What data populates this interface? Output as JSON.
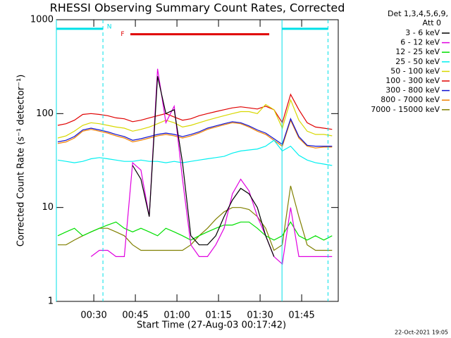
{
  "chart_data": {
    "type": "line",
    "title": "RHESSI Observing Summary Count Rates, Corrected",
    "x_label": "Start Time (27-Aug-03 00:17:42)",
    "y_label": "Corrected Count Rate (s⁻¹ detector⁻¹)",
    "legend_header": [
      "Det 1,3,4,5,6,9,",
      "Att 0"
    ],
    "footer": "22-Oct-2021 19:05",
    "log_y": true,
    "xlim": [
      16.5,
      118.2
    ],
    "xticks": [
      {
        "value": 30,
        "label": "00:30"
      },
      {
        "value": 45,
        "label": "00:45"
      },
      {
        "value": 60,
        "label": "01:00"
      },
      {
        "value": 75,
        "label": "01:15"
      },
      {
        "value": 90,
        "label": "01:30"
      },
      {
        "value": 105,
        "label": "01:45"
      }
    ],
    "ylim": [
      1,
      1000
    ],
    "yticks": [
      1,
      10,
      100,
      1000
    ],
    "annotations": {
      "night": {
        "label": "N",
        "color": "#00e0e8",
        "level": 800,
        "intervals": [
          [
            16.5,
            33.3
          ],
          [
            97.9,
            114.5
          ]
        ]
      },
      "flare": {
        "label": "F",
        "color": "#e00000",
        "level": 700,
        "x": [
          43.2,
          93.3
        ]
      }
    },
    "x": [
      17,
      20,
      23,
      26,
      29,
      32,
      35,
      38,
      41,
      44,
      47,
      50,
      53,
      56,
      59,
      62,
      65,
      68,
      71,
      74,
      77,
      80,
      83,
      86,
      89,
      92,
      95,
      98,
      101,
      104,
      107,
      110,
      113,
      116
    ],
    "series": [
      {
        "name": "3 - 6 keV",
        "color": "#000000",
        "values": [
          null,
          null,
          null,
          null,
          null,
          null,
          null,
          null,
          null,
          28,
          20,
          8,
          250,
          100,
          110,
          30,
          5,
          4,
          4,
          5,
          8,
          12,
          16,
          14,
          10,
          5,
          3,
          null,
          10,
          null,
          null,
          null,
          null,
          null
        ]
      },
      {
        "name": "6 - 12 keV",
        "color": "#e000e0",
        "values": [
          null,
          null,
          null,
          null,
          3,
          3.5,
          3.5,
          3,
          3,
          30,
          25,
          8,
          300,
          80,
          120,
          20,
          4,
          3,
          3,
          4,
          6,
          14,
          20,
          15,
          8,
          5,
          3,
          2.5,
          10,
          3,
          3,
          3,
          3,
          3
        ]
      },
      {
        "name": "12 - 25 keV",
        "color": "#00e000",
        "values": [
          5,
          5.5,
          6,
          5,
          5.5,
          6,
          6.5,
          7,
          6,
          5.5,
          6,
          5.5,
          5,
          6,
          5.5,
          5,
          4.5,
          5,
          5.5,
          6,
          6.5,
          6.5,
          7,
          7,
          6,
          5,
          4.5,
          5,
          7,
          5,
          4.5,
          5,
          4.5,
          5
        ]
      },
      {
        "name": "25 - 50 keV",
        "color": "#00f0f0",
        "values": [
          32,
          31,
          30,
          31,
          33,
          34,
          33,
          32,
          31,
          31,
          32,
          31,
          31,
          30,
          31,
          30,
          31,
          32,
          33,
          34,
          35,
          38,
          40,
          41,
          42,
          45,
          52,
          40,
          45,
          36,
          32,
          30,
          29,
          28
        ]
      },
      {
        "name": "50 - 100 keV",
        "color": "#d8d800",
        "values": [
          55,
          58,
          65,
          75,
          80,
          78,
          75,
          72,
          70,
          65,
          68,
          72,
          78,
          85,
          80,
          72,
          75,
          80,
          85,
          90,
          95,
          100,
          105,
          105,
          100,
          125,
          110,
          70,
          140,
          85,
          65,
          60,
          60,
          58
        ]
      },
      {
        "name": "100 - 300 keV",
        "color": "#e00000",
        "values": [
          75,
          78,
          85,
          98,
          100,
          98,
          95,
          90,
          88,
          82,
          85,
          90,
          95,
          100,
          92,
          85,
          88,
          95,
          100,
          105,
          110,
          115,
          118,
          115,
          112,
          120,
          110,
          80,
          160,
          110,
          80,
          72,
          70,
          68
        ]
      },
      {
        "name": "300 - 800 keV",
        "color": "#1010d0",
        "values": [
          50,
          52,
          57,
          67,
          70,
          67,
          64,
          60,
          57,
          52,
          54,
          57,
          60,
          62,
          60,
          57,
          60,
          64,
          70,
          74,
          78,
          82,
          80,
          74,
          67,
          62,
          54,
          47,
          88,
          57,
          46,
          45,
          45,
          45
        ]
      },
      {
        "name": "800 - 7000 keV",
        "color": "#f08000",
        "values": [
          48,
          50,
          55,
          65,
          68,
          65,
          62,
          58,
          55,
          50,
          52,
          55,
          58,
          60,
          58,
          55,
          58,
          62,
          68,
          72,
          76,
          80,
          78,
          72,
          65,
          60,
          52,
          45,
          85,
          55,
          45,
          43,
          44,
          44
        ]
      },
      {
        "name": "7000 - 15000 keV",
        "color": "#808000",
        "values": [
          4,
          4,
          4.5,
          5,
          5.5,
          6,
          6,
          5.5,
          5,
          4,
          3.5,
          3.5,
          3.5,
          3.5,
          3.5,
          3.5,
          4,
          5,
          6,
          7.5,
          9,
          10,
          10,
          9.5,
          8,
          6,
          3.5,
          4,
          17,
          8,
          4,
          3.5,
          3.5,
          3.5
        ]
      }
    ]
  }
}
